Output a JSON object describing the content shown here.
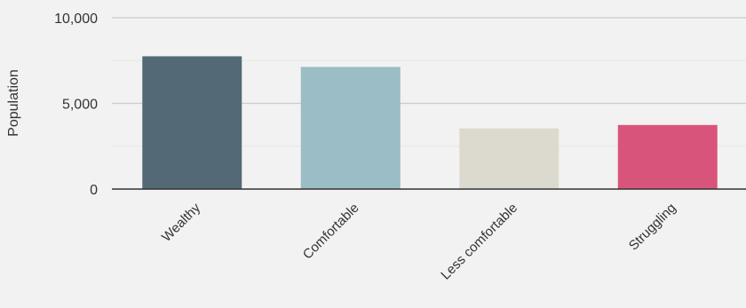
{
  "chart_data": {
    "type": "bar",
    "title": "",
    "xlabel": "",
    "ylabel": "Population",
    "ylim": [
      0,
      10000
    ],
    "yticks": [
      {
        "value": 0,
        "label": "0"
      },
      {
        "value": 5000,
        "label": "5,000"
      },
      {
        "value": 10000,
        "label": "10,000"
      }
    ],
    "minor_gridlines": [
      2500,
      7500
    ],
    "grid": true,
    "legend": "none",
    "categories": [
      "Wealthy",
      "Comfortable",
      "Less comfortable",
      "Struggling"
    ],
    "values": [
      7750,
      7130,
      3540,
      3740
    ],
    "colors": [
      "#536a76",
      "#9bbdc5",
      "#dcd9ce",
      "#d9547b"
    ]
  }
}
